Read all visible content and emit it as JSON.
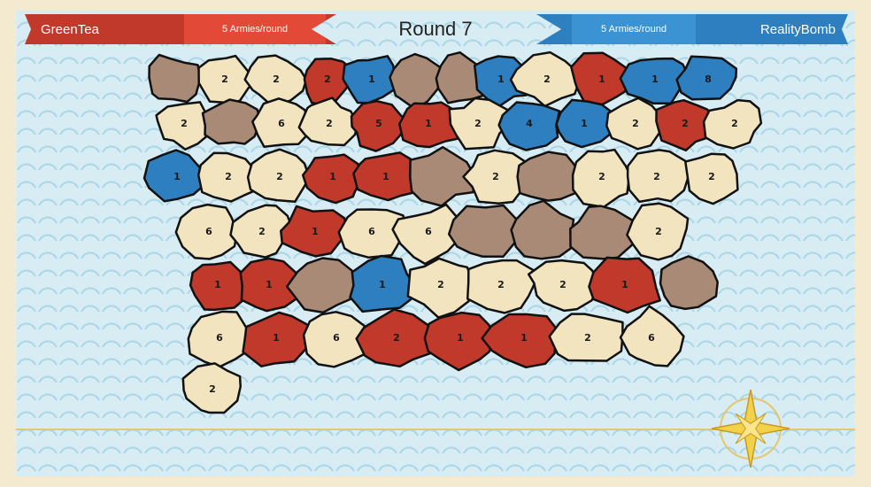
{
  "header": {
    "round_label": "Round 7",
    "left_player": {
      "name": "GreenTea",
      "armies": "5 Armies/round",
      "color": "#c0392b"
    },
    "right_player": {
      "name": "RealityBomb",
      "armies": "5 Armies/round",
      "color": "#2e7fbf"
    }
  },
  "colors": {
    "red": "#c0392b",
    "blue": "#2e7fbf",
    "neutral": "#f1e4bf",
    "brown": "#a88a77",
    "sea": "#d8ecf4"
  },
  "regions": [
    {
      "owner": "brown",
      "n": ""
    },
    {
      "owner": "neutral",
      "n": "2"
    },
    {
      "owner": "neutral",
      "n": "2"
    },
    {
      "owner": "red",
      "n": "2"
    },
    {
      "owner": "blue",
      "n": "1"
    },
    {
      "owner": "brown",
      "n": ""
    },
    {
      "owner": "brown",
      "n": ""
    },
    {
      "owner": "blue",
      "n": "1"
    },
    {
      "owner": "neutral",
      "n": "2"
    },
    {
      "owner": "red",
      "n": "1"
    },
    {
      "owner": "blue",
      "n": "1"
    },
    {
      "owner": "blue",
      "n": "8"
    },
    {
      "owner": "neutral",
      "n": "2"
    },
    {
      "owner": "brown",
      "n": ""
    },
    {
      "owner": "neutral",
      "n": "6"
    },
    {
      "owner": "neutral",
      "n": "2"
    },
    {
      "owner": "red",
      "n": "5"
    },
    {
      "owner": "red",
      "n": "1"
    },
    {
      "owner": "neutral",
      "n": "2"
    },
    {
      "owner": "blue",
      "n": "4"
    },
    {
      "owner": "blue",
      "n": "1"
    },
    {
      "owner": "neutral",
      "n": "2"
    },
    {
      "owner": "red",
      "n": "2"
    },
    {
      "owner": "neutral",
      "n": "2"
    },
    {
      "owner": "blue",
      "n": "1"
    },
    {
      "owner": "neutral",
      "n": "2"
    },
    {
      "owner": "neutral",
      "n": "2"
    },
    {
      "owner": "red",
      "n": "1"
    },
    {
      "owner": "red",
      "n": "1"
    },
    {
      "owner": "brown",
      "n": ""
    },
    {
      "owner": "neutral",
      "n": "2"
    },
    {
      "owner": "brown",
      "n": ""
    },
    {
      "owner": "neutral",
      "n": "2"
    },
    {
      "owner": "neutral",
      "n": "2"
    },
    {
      "owner": "neutral",
      "n": "2"
    },
    {
      "owner": "neutral",
      "n": "6"
    },
    {
      "owner": "neutral",
      "n": "2"
    },
    {
      "owner": "red",
      "n": "1"
    },
    {
      "owner": "neutral",
      "n": "6"
    },
    {
      "owner": "neutral",
      "n": "6"
    },
    {
      "owner": "brown",
      "n": ""
    },
    {
      "owner": "brown",
      "n": ""
    },
    {
      "owner": "brown",
      "n": ""
    },
    {
      "owner": "neutral",
      "n": "2"
    },
    {
      "owner": "red",
      "n": "1"
    },
    {
      "owner": "red",
      "n": "1"
    },
    {
      "owner": "brown",
      "n": ""
    },
    {
      "owner": "blue",
      "n": "1"
    },
    {
      "owner": "neutral",
      "n": "2"
    },
    {
      "owner": "neutral",
      "n": "2"
    },
    {
      "owner": "neutral",
      "n": "2"
    },
    {
      "owner": "red",
      "n": "1"
    },
    {
      "owner": "brown",
      "n": ""
    },
    {
      "owner": "neutral",
      "n": "6"
    },
    {
      "owner": "red",
      "n": "1"
    },
    {
      "owner": "neutral",
      "n": "6"
    },
    {
      "owner": "red",
      "n": "2"
    },
    {
      "owner": "red",
      "n": "1"
    },
    {
      "owner": "red",
      "n": "1"
    },
    {
      "owner": "neutral",
      "n": "2"
    },
    {
      "owner": "neutral",
      "n": "6"
    },
    {
      "owner": "neutral",
      "n": "2"
    }
  ]
}
